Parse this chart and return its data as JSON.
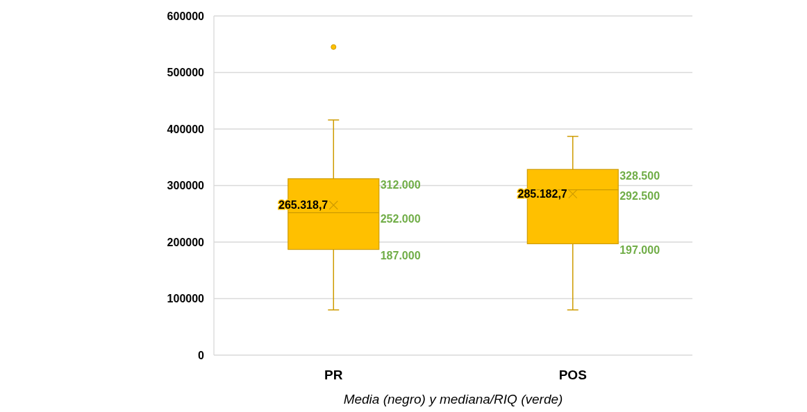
{
  "chart_data": {
    "type": "box",
    "xlabel": "Media (negro) y mediana/RIQ (verde)",
    "categories": [
      "PR",
      "POS"
    ],
    "series": [
      {
        "color": "#ffc000",
        "boxes": [
          {
            "low": 80000,
            "q1": 187000,
            "median": 252000,
            "q3": 312000,
            "high": 416000,
            "mean": 265318.7,
            "outliers": [
              545000
            ]
          },
          {
            "low": 80000,
            "q1": 197000,
            "median": 292500,
            "q3": 328500,
            "high": 387000,
            "mean": 285182.7
          }
        ]
      }
    ],
    "ylim": [
      0,
      600000
    ],
    "yticks": [
      0,
      100000,
      200000,
      300000,
      400000,
      500000,
      600000
    ],
    "grid": "y",
    "annotations": [
      "312.000",
      "252.000",
      "187.000",
      "265.318,7",
      "328.500",
      "292.500",
      "197.000",
      "285.182,7"
    ]
  }
}
